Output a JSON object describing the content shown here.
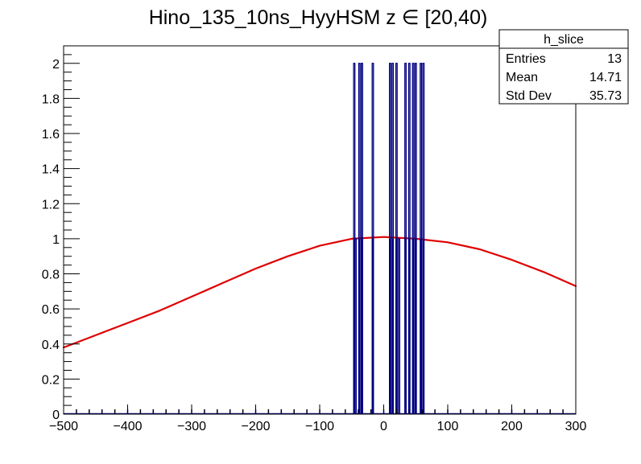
{
  "chart_data": {
    "type": "bar",
    "title": "Hino_135_10ns_HyyHSM z  ∈ [20,40)",
    "xlabel": "",
    "ylabel": "",
    "xlim": [
      -500,
      300
    ],
    "ylim": [
      0,
      2.1
    ],
    "x_ticks": [
      -500,
      -400,
      -300,
      -200,
      -100,
      0,
      100,
      200,
      300
    ],
    "y_ticks": [
      0,
      0.2,
      0.4,
      0.6,
      0.8,
      1,
      1.2,
      1.4,
      1.6,
      1.8,
      2
    ],
    "grid": false,
    "legend_position": "top-right",
    "series": [
      {
        "kind": "histogram",
        "color": "#000080",
        "bin_width": 2,
        "bins": [
          {
            "x": -46,
            "value": 2
          },
          {
            "x": -44,
            "value": 1
          },
          {
            "x": -38,
            "value": 2
          },
          {
            "x": -34,
            "value": 2
          },
          {
            "x": -17,
            "value": 2
          },
          {
            "x": 10,
            "value": 2
          },
          {
            "x": 14,
            "value": 2
          },
          {
            "x": 20,
            "value": 2
          },
          {
            "x": 24,
            "value": 1
          },
          {
            "x": 34,
            "value": 2
          },
          {
            "x": 40,
            "value": 2
          },
          {
            "x": 46,
            "value": 2
          },
          {
            "x": 50,
            "value": 2
          },
          {
            "x": 58,
            "value": 2
          },
          {
            "x": 62,
            "value": 2
          }
        ],
        "baseline_marks": [
          -480,
          -460,
          -440,
          -420,
          -400,
          -380,
          -360,
          -340,
          -320,
          -300,
          -280,
          -260,
          -240,
          -220,
          -200,
          -180,
          -160,
          -140,
          -120,
          -100,
          -80,
          -60,
          -20,
          0,
          80,
          100,
          120,
          140,
          160,
          180,
          200,
          220,
          240,
          260,
          280
        ],
        "interior_values": {
          "-46": 1,
          "-38": 1,
          "-34": 1,
          "-17": 1,
          "10": 1,
          "14": 1,
          "20": 1,
          "34": 1,
          "40": 1,
          "46": 1,
          "50": 1,
          "58": 1,
          "62": 1
        }
      },
      {
        "kind": "curve",
        "color": "#e00000",
        "x": [
          -500,
          -450,
          -400,
          -350,
          -300,
          -250,
          -200,
          -150,
          -100,
          -50,
          0,
          50,
          100,
          150,
          200,
          250,
          300
        ],
        "values": [
          0.38,
          0.45,
          0.52,
          0.59,
          0.67,
          0.75,
          0.83,
          0.9,
          0.96,
          1.0,
          1.01,
          1.0,
          0.98,
          0.94,
          0.88,
          0.81,
          0.73
        ]
      }
    ]
  },
  "stats_box": {
    "title": "h_slice",
    "rows": [
      {
        "label": "Entries",
        "value": "13"
      },
      {
        "label": "Mean",
        "value": "14.71"
      },
      {
        "label": "Std Dev",
        "value": "35.73"
      }
    ]
  }
}
